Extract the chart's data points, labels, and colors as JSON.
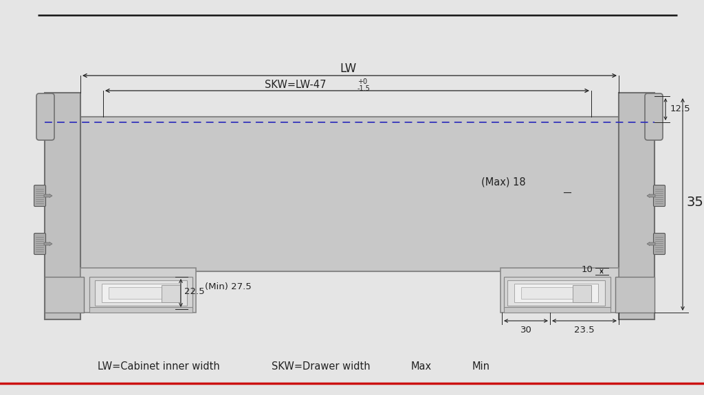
{
  "bg_color": "#e5e5e5",
  "drawer_fill": "#c8c8c8",
  "drawer_edge": "#888888",
  "wall_fill": "#c0c0c0",
  "wall_edge": "#707070",
  "slide_fill": "#d0d0d0",
  "slide_edge": "#888888",
  "slide_inner_fill": "#e8e8e8",
  "dim_color": "#222222",
  "blue_dot_color": "#3333bb",
  "top_line_color": "#111111",
  "bottom_line_color": "#cc1111",
  "annotations": {
    "LW": "LW",
    "SKW": "SKW=LW-47",
    "SKW_sup": "+0",
    "SKW_sub": "-1.5",
    "max18": "(Max) 18",
    "dim22_5": "22.5",
    "min27_5": "(Min) 27.5",
    "dim10": "10",
    "dim30": "30",
    "dim23_5": "23.5",
    "dim12_5": "12.5",
    "dim35": "35"
  },
  "legend": {
    "lw": "LW=Cabinet inner width",
    "skw": "SKW=Drawer width",
    "max_lbl": "Max",
    "min_lbl": "Min"
  },
  "figsize": [
    10.24,
    5.75
  ],
  "dpi": 100
}
